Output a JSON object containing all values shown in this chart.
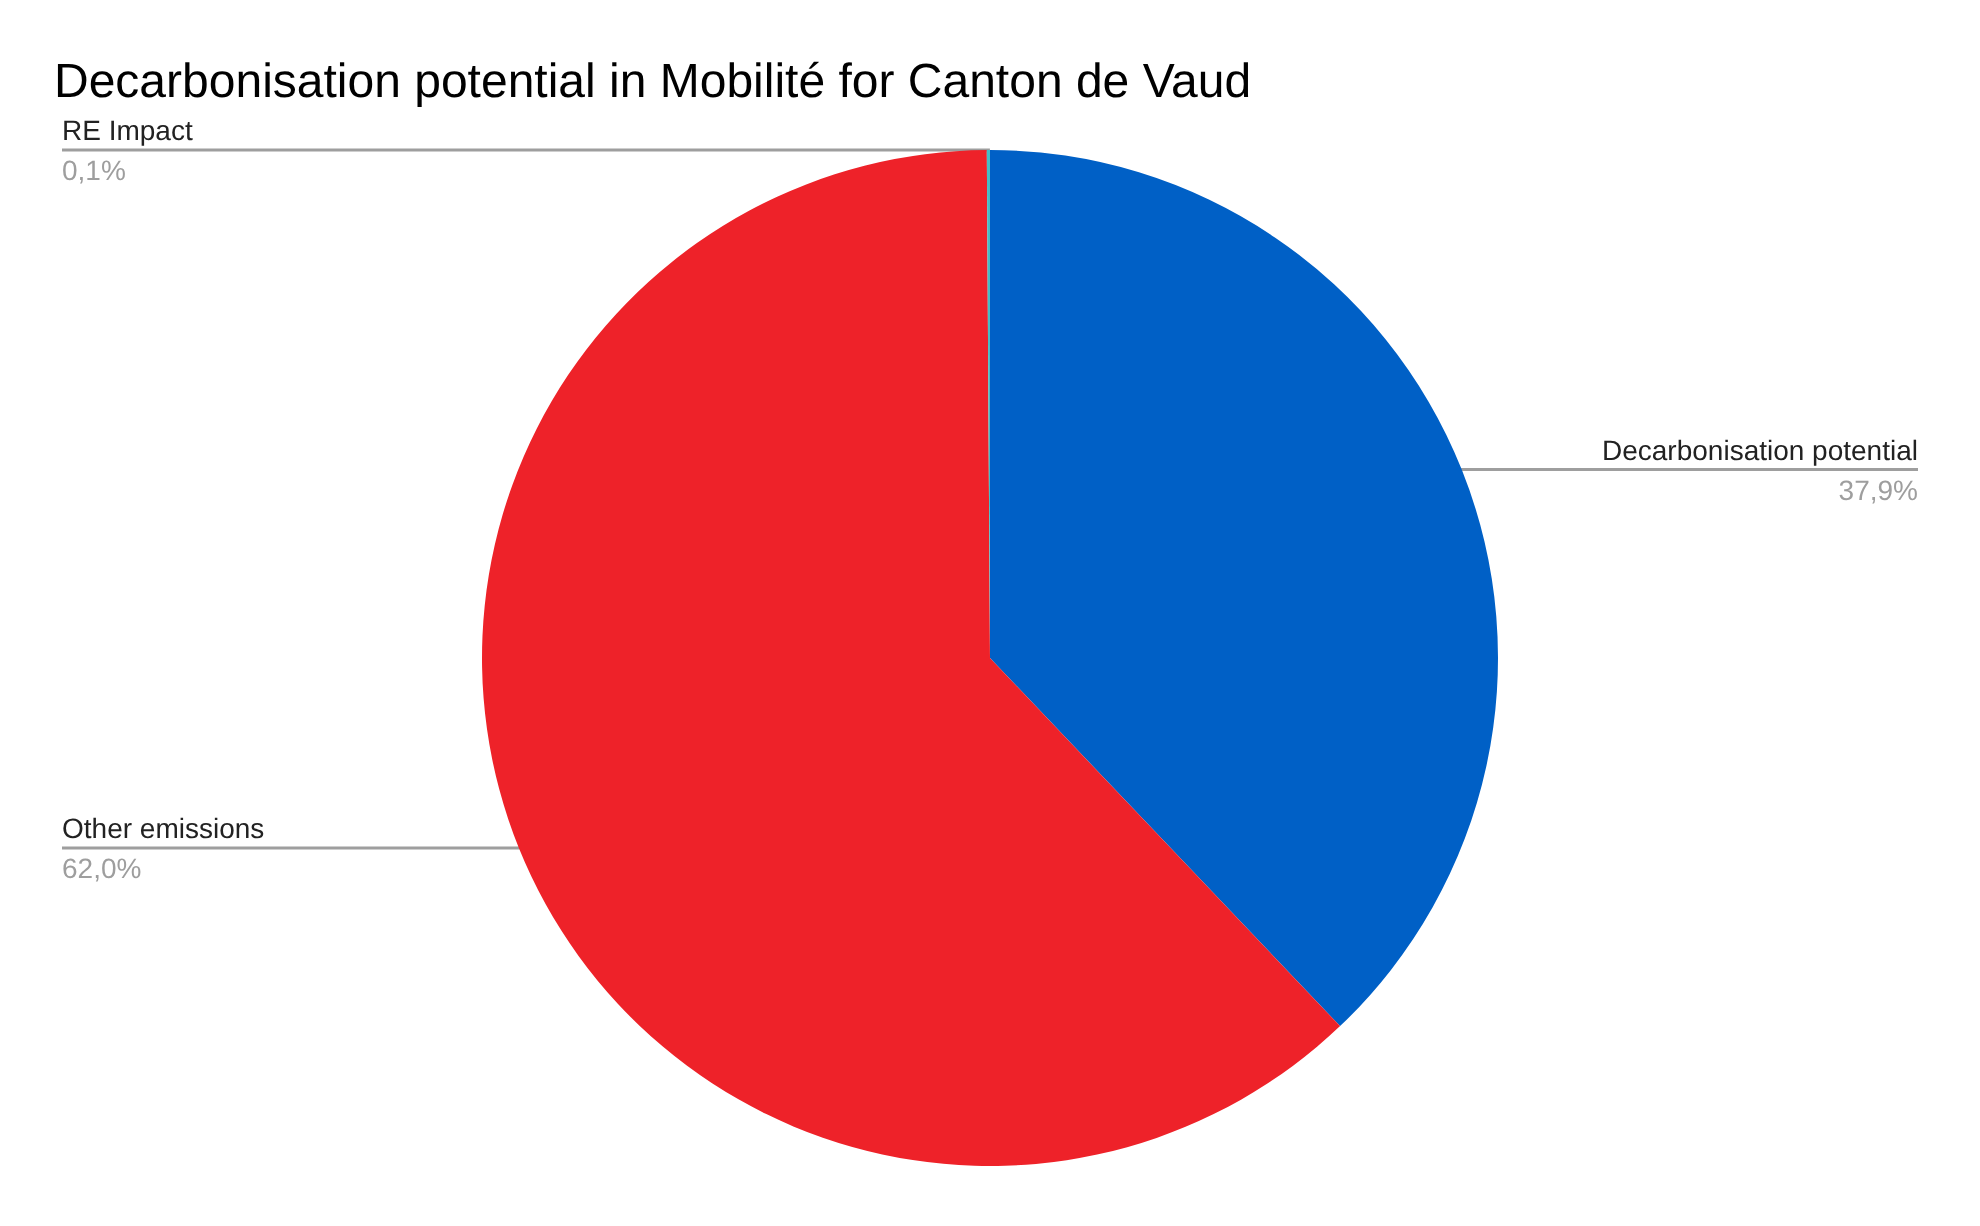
{
  "chart_data": {
    "type": "pie",
    "title": "Decarbonisation potential in Mobilité for Canton de Vaud",
    "categories": [
      "Decarbonisation potential",
      "Other emissions",
      "RE Impact"
    ],
    "values": [
      37.9,
      62.0,
      0.1
    ],
    "colors": [
      "#0060c6",
      "#ee2229",
      "#46bdc6"
    ],
    "value_labels": [
      "37,9%",
      "62,0%",
      "0,1%"
    ]
  }
}
